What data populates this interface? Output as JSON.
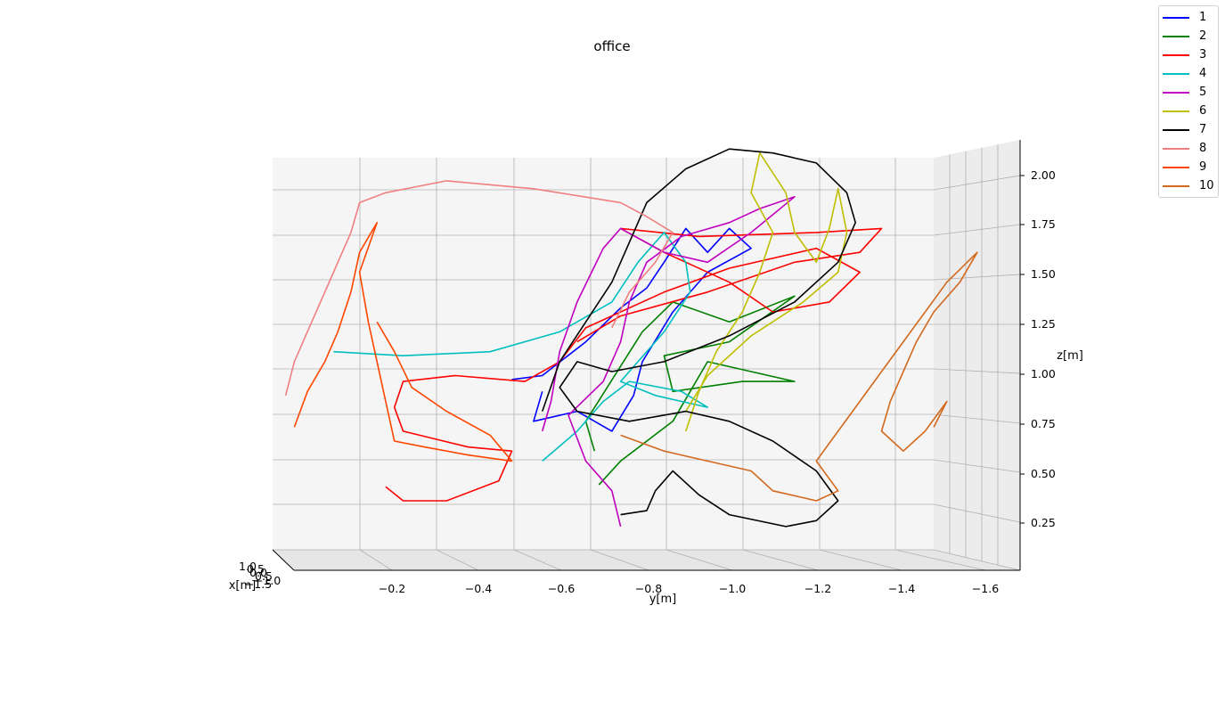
{
  "chart_data": {
    "type": "line",
    "projection": "3d",
    "title": "office",
    "xlabel": "x[m]",
    "ylabel": "y[m]",
    "zlabel": "z[m]",
    "x_ticks": [
      "−1.5",
      "−1.0",
      "0.5",
      "0.0",
      "0.5",
      "1.0"
    ],
    "y_ticks": [
      "−0.2",
      "−0.4",
      "−0.6",
      "−0.8",
      "−1.0",
      "−1.2",
      "−1.4",
      "−1.6"
    ],
    "z_ticks": [
      "0.25",
      "0.50",
      "0.75",
      "1.00",
      "1.25",
      "1.50",
      "1.75",
      "2.00"
    ],
    "ylim": [
      0.0,
      -1.7
    ],
    "zlim": [
      0.0,
      2.15
    ],
    "grid": true,
    "legend_position": "top-right",
    "series": [
      {
        "name": "1",
        "color": "#0000ff",
        "points": [
          [
            -0.55,
            0.96
          ],
          [
            -0.62,
            0.98
          ],
          [
            -0.72,
            1.15
          ],
          [
            -0.8,
            1.32
          ],
          [
            -0.86,
            1.42
          ],
          [
            -0.9,
            1.55
          ],
          [
            -0.95,
            1.72
          ],
          [
            -1.0,
            1.6
          ],
          [
            -1.05,
            1.72
          ],
          [
            -1.1,
            1.62
          ],
          [
            -1.0,
            1.5
          ],
          [
            -0.92,
            1.3
          ],
          [
            -0.85,
            1.05
          ],
          [
            -0.83,
            0.88
          ],
          [
            -0.78,
            0.7
          ],
          [
            -0.7,
            0.8
          ],
          [
            -0.6,
            0.75
          ],
          [
            -0.62,
            0.9
          ]
        ]
      },
      {
        "name": "2",
        "color": "#008000",
        "points": [
          [
            -0.74,
            0.6
          ],
          [
            -0.72,
            0.75
          ],
          [
            -0.85,
            1.2
          ],
          [
            -0.92,
            1.35
          ],
          [
            -1.05,
            1.25
          ],
          [
            -1.2,
            1.38
          ],
          [
            -1.05,
            1.15
          ],
          [
            -0.9,
            1.08
          ],
          [
            -0.92,
            0.9
          ],
          [
            -1.08,
            0.95
          ],
          [
            -1.2,
            0.95
          ],
          [
            -1.0,
            1.05
          ],
          [
            -0.92,
            0.75
          ],
          [
            -0.8,
            0.55
          ],
          [
            -0.75,
            0.43
          ]
        ]
      },
      {
        "name": "3",
        "color": "#ff0000",
        "points": [
          [
            -0.26,
            0.42
          ],
          [
            -0.3,
            0.35
          ],
          [
            -0.4,
            0.35
          ],
          [
            -0.52,
            0.45
          ],
          [
            -0.55,
            0.6
          ],
          [
            -0.45,
            0.62
          ],
          [
            -0.3,
            0.7
          ],
          [
            -0.28,
            0.82
          ],
          [
            -0.3,
            0.95
          ],
          [
            -0.42,
            0.98
          ],
          [
            -0.58,
            0.95
          ],
          [
            -0.66,
            1.05
          ],
          [
            -0.72,
            1.22
          ],
          [
            -0.9,
            1.4
          ],
          [
            -1.05,
            1.52
          ],
          [
            -1.25,
            1.62
          ],
          [
            -1.35,
            1.5
          ],
          [
            -1.28,
            1.35
          ],
          [
            -1.15,
            1.3
          ],
          [
            -1.05,
            1.45
          ],
          [
            -0.9,
            1.6
          ],
          [
            -0.8,
            1.72
          ],
          [
            -0.98,
            1.68
          ],
          [
            -1.25,
            1.7
          ],
          [
            -1.4,
            1.72
          ],
          [
            -1.35,
            1.6
          ],
          [
            -1.2,
            1.55
          ],
          [
            -1.0,
            1.4
          ],
          [
            -0.8,
            1.28
          ],
          [
            -0.7,
            1.15
          ]
        ]
      },
      {
        "name": "4",
        "color": "#00bfbf",
        "points": [
          [
            -0.14,
            1.1
          ],
          [
            -0.3,
            1.08
          ],
          [
            -0.5,
            1.1
          ],
          [
            -0.66,
            1.2
          ],
          [
            -0.78,
            1.35
          ],
          [
            -0.84,
            1.55
          ],
          [
            -0.9,
            1.7
          ],
          [
            -0.95,
            1.55
          ],
          [
            -0.96,
            1.4
          ],
          [
            -0.9,
            1.2
          ],
          [
            -0.84,
            1.05
          ],
          [
            -0.8,
            0.95
          ],
          [
            -0.88,
            0.88
          ],
          [
            -1.0,
            0.82
          ],
          [
            -0.94,
            0.9
          ],
          [
            -0.82,
            0.95
          ],
          [
            -0.76,
            0.85
          ],
          [
            -0.7,
            0.7
          ],
          [
            -0.62,
            0.55
          ]
        ]
      },
      {
        "name": "5",
        "color": "#bf00bf",
        "points": [
          [
            -0.8,
            0.22
          ],
          [
            -0.78,
            0.4
          ],
          [
            -0.72,
            0.55
          ],
          [
            -0.68,
            0.78
          ],
          [
            -0.76,
            0.95
          ],
          [
            -0.8,
            1.15
          ],
          [
            -0.82,
            1.35
          ],
          [
            -0.86,
            1.55
          ],
          [
            -0.94,
            1.68
          ],
          [
            -1.05,
            1.75
          ],
          [
            -1.12,
            1.82
          ],
          [
            -1.2,
            1.88
          ],
          [
            -1.1,
            1.7
          ],
          [
            -1.0,
            1.55
          ],
          [
            -0.9,
            1.6
          ],
          [
            -0.8,
            1.72
          ],
          [
            -0.76,
            1.62
          ],
          [
            -0.7,
            1.35
          ],
          [
            -0.66,
            1.1
          ],
          [
            -0.64,
            0.85
          ],
          [
            -0.62,
            0.7
          ]
        ]
      },
      {
        "name": "6",
        "color": "#bfbf00",
        "points": [
          [
            -0.95,
            0.7
          ],
          [
            -0.98,
            0.9
          ],
          [
            -1.02,
            1.1
          ],
          [
            -1.08,
            1.3
          ],
          [
            -1.12,
            1.5
          ],
          [
            -1.15,
            1.7
          ],
          [
            -1.1,
            1.9
          ],
          [
            -1.12,
            2.1
          ],
          [
            -1.18,
            1.9
          ],
          [
            -1.2,
            1.7
          ],
          [
            -1.25,
            1.55
          ],
          [
            -1.28,
            1.72
          ],
          [
            -1.3,
            1.92
          ],
          [
            -1.32,
            1.7
          ],
          [
            -1.3,
            1.5
          ],
          [
            -1.22,
            1.35
          ],
          [
            -1.1,
            1.18
          ],
          [
            -1.0,
            0.98
          ],
          [
            -0.95,
            0.8
          ]
        ]
      },
      {
        "name": "7",
        "color": "#000000",
        "points": [
          [
            -0.62,
            0.8
          ],
          [
            -0.66,
            1.05
          ],
          [
            -0.72,
            1.25
          ],
          [
            -0.78,
            1.45
          ],
          [
            -0.82,
            1.65
          ],
          [
            -0.86,
            1.85
          ],
          [
            -0.95,
            2.02
          ],
          [
            -1.05,
            2.12
          ],
          [
            -1.15,
            2.1
          ],
          [
            -1.25,
            2.05
          ],
          [
            -1.32,
            1.9
          ],
          [
            -1.34,
            1.75
          ],
          [
            -1.3,
            1.55
          ],
          [
            -1.2,
            1.35
          ],
          [
            -1.05,
            1.18
          ],
          [
            -0.9,
            1.05
          ],
          [
            -0.78,
            1.0
          ],
          [
            -0.7,
            1.05
          ],
          [
            -0.66,
            0.92
          ],
          [
            -0.7,
            0.8
          ],
          [
            -0.82,
            0.75
          ],
          [
            -0.95,
            0.8
          ],
          [
            -1.05,
            0.75
          ],
          [
            -1.15,
            0.65
          ],
          [
            -1.25,
            0.5
          ],
          [
            -1.3,
            0.35
          ],
          [
            -1.25,
            0.25
          ],
          [
            -1.18,
            0.22
          ],
          [
            -1.05,
            0.28
          ],
          [
            -0.98,
            0.38
          ],
          [
            -0.92,
            0.5
          ],
          [
            -0.88,
            0.4
          ],
          [
            -0.86,
            0.3
          ],
          [
            -0.8,
            0.28
          ]
        ]
      },
      {
        "name": "8",
        "color": "#f08080",
        "points": [
          [
            -0.03,
            0.88
          ],
          [
            -0.05,
            1.05
          ],
          [
            -0.1,
            1.3
          ],
          [
            -0.14,
            1.5
          ],
          [
            -0.18,
            1.7
          ],
          [
            -0.2,
            1.85
          ],
          [
            -0.26,
            1.9
          ],
          [
            -0.4,
            1.96
          ],
          [
            -0.6,
            1.92
          ],
          [
            -0.8,
            1.85
          ],
          [
            -0.86,
            1.78
          ],
          [
            -0.92,
            1.7
          ],
          [
            -0.88,
            1.55
          ],
          [
            -0.82,
            1.4
          ],
          [
            -0.78,
            1.22
          ]
        ]
      },
      {
        "name": "9",
        "color": "#ff4500",
        "points": [
          [
            -0.05,
            0.72
          ],
          [
            -0.08,
            0.9
          ],
          [
            -0.12,
            1.05
          ],
          [
            -0.15,
            1.2
          ],
          [
            -0.18,
            1.4
          ],
          [
            -0.2,
            1.6
          ],
          [
            -0.24,
            1.75
          ],
          [
            -0.2,
            1.5
          ],
          [
            -0.22,
            1.25
          ],
          [
            -0.24,
            1.05
          ],
          [
            -0.26,
            0.85
          ],
          [
            -0.28,
            0.65
          ],
          [
            -0.35,
            0.62
          ],
          [
            -0.45,
            0.58
          ],
          [
            -0.55,
            0.55
          ],
          [
            -0.5,
            0.68
          ],
          [
            -0.4,
            0.8
          ],
          [
            -0.32,
            0.92
          ],
          [
            -0.28,
            1.1
          ],
          [
            -0.24,
            1.25
          ]
        ]
      },
      {
        "name": "10",
        "color": "#d2691e",
        "points": [
          [
            -0.8,
            0.68
          ],
          [
            -0.9,
            0.6
          ],
          [
            -1.0,
            0.55
          ],
          [
            -1.1,
            0.5
          ],
          [
            -1.15,
            0.4
          ],
          [
            -1.25,
            0.35
          ],
          [
            -1.3,
            0.4
          ],
          [
            -1.25,
            0.55
          ],
          [
            -1.3,
            0.7
          ],
          [
            -1.35,
            0.85
          ],
          [
            -1.4,
            1.0
          ],
          [
            -1.45,
            1.15
          ],
          [
            -1.5,
            1.3
          ],
          [
            -1.55,
            1.45
          ],
          [
            -1.62,
            1.6
          ],
          [
            -1.58,
            1.45
          ],
          [
            -1.52,
            1.3
          ],
          [
            -1.48,
            1.15
          ],
          [
            -1.45,
            1.0
          ],
          [
            -1.42,
            0.85
          ],
          [
            -1.4,
            0.7
          ],
          [
            -1.45,
            0.6
          ],
          [
            -1.5,
            0.7
          ],
          [
            -1.55,
            0.85
          ],
          [
            -1.52,
            0.72
          ]
        ]
      }
    ]
  }
}
